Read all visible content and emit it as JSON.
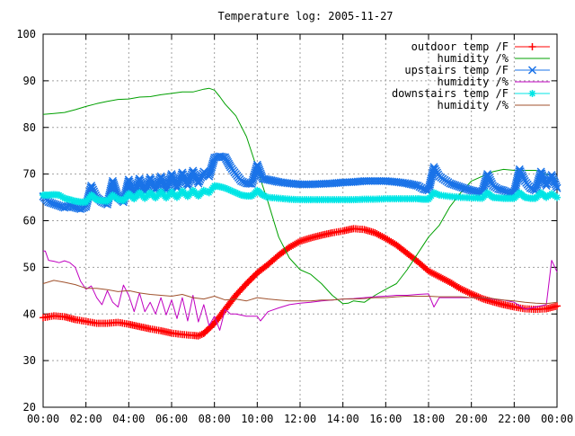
{
  "chart_data": {
    "type": "line",
    "title": "Temperature log: 2005-11-27",
    "xlabel": "",
    "ylabel": "",
    "xlim": [
      0,
      24
    ],
    "ylim": [
      20,
      100
    ],
    "grid": true,
    "legend_position": "top-right",
    "x_tick_labels": [
      "00:00",
      "02:00",
      "04:00",
      "06:00",
      "08:00",
      "10:00",
      "12:00",
      "14:00",
      "16:00",
      "18:00",
      "20:00",
      "22:00",
      "00:00"
    ],
    "y_tick_labels": [
      "20",
      "30",
      "40",
      "50",
      "60",
      "70",
      "80",
      "90",
      "100"
    ],
    "series": [
      {
        "name": "outdoor temp /F",
        "color": "#ff0000",
        "marker": "plus",
        "x": [
          0,
          0.5,
          1,
          1.5,
          2,
          2.5,
          3,
          3.5,
          4,
          4.5,
          5,
          5.5,
          6,
          6.5,
          7,
          7.25,
          7.5,
          8,
          8.5,
          9,
          9.5,
          10,
          10.5,
          11,
          11.5,
          12,
          12.5,
          13,
          13.5,
          14,
          14.5,
          15,
          15.5,
          16,
          16.5,
          17,
          17.5,
          18,
          18.5,
          19,
          19.5,
          20,
          20.5,
          21,
          21.5,
          22,
          22.5,
          23,
          23.5,
          24
        ],
        "y": [
          39.2,
          39.6,
          39.4,
          38.8,
          38.4,
          38.0,
          38.0,
          38.2,
          37.8,
          37.3,
          36.8,
          36.4,
          35.9,
          35.6,
          35.4,
          35.3,
          35.8,
          38.0,
          41.0,
          44.0,
          46.5,
          48.8,
          50.6,
          52.6,
          54.3,
          55.6,
          56.3,
          56.9,
          57.4,
          57.8,
          58.3,
          58.1,
          57.4,
          56.2,
          54.8,
          53.0,
          51.2,
          49.2,
          48.0,
          46.8,
          45.4,
          44.3,
          43.3,
          42.6,
          42.0,
          41.5,
          41.1,
          41.0,
          41.1,
          41.7
        ]
      },
      {
        "name": "humidity /%",
        "color": "#00a000",
        "marker": "none",
        "x": [
          0,
          0.5,
          1,
          1.5,
          2,
          2.5,
          3,
          3.5,
          4,
          4.5,
          5,
          5.5,
          6,
          6.5,
          7,
          7.5,
          7.75,
          8,
          8.25,
          8.5,
          9,
          9.5,
          10,
          10.5,
          11,
          11.5,
          12,
          12.5,
          13,
          13.5,
          14,
          14.25,
          14.5,
          15,
          15.5,
          16,
          16.5,
          17,
          17.5,
          18,
          18.5,
          19,
          19.5,
          20,
          20.5,
          21,
          21.5,
          22,
          22.5,
          23,
          23.5,
          24
        ],
        "y": [
          82.8,
          83.0,
          83.2,
          83.8,
          84.5,
          85.1,
          85.6,
          86.0,
          86.1,
          86.5,
          86.6,
          87.0,
          87.3,
          87.6,
          87.6,
          88.2,
          88.4,
          88.0,
          86.6,
          85.0,
          82.5,
          78.0,
          71.0,
          64.0,
          56.5,
          52.0,
          49.5,
          48.5,
          46.5,
          44.0,
          42.2,
          42.3,
          42.8,
          42.5,
          44.0,
          45.3,
          46.5,
          49.5,
          53.0,
          56.5,
          59.0,
          63.0,
          66.0,
          68.5,
          69.5,
          70.5,
          71.0,
          70.8,
          70.8,
          70.8,
          70.0,
          69.0
        ]
      },
      {
        "name": "upstairs temp /F",
        "color": "#1a73e8",
        "marker": "x",
        "x": [
          0,
          0.25,
          0.5,
          0.75,
          1,
          1.25,
          1.5,
          1.75,
          2,
          2.25,
          2.5,
          2.75,
          3,
          3.25,
          3.5,
          3.75,
          4,
          4.25,
          4.5,
          4.75,
          5,
          5.25,
          5.5,
          5.75,
          6,
          6.25,
          6.5,
          6.75,
          7,
          7.25,
          7.5,
          7.75,
          8,
          8.25,
          8.5,
          8.75,
          9,
          9.25,
          9.5,
          9.75,
          10,
          10.25,
          10.5,
          11,
          11.5,
          12,
          12.5,
          13,
          13.5,
          14,
          14.5,
          15,
          15.5,
          16,
          16.5,
          17,
          17.5,
          17.75,
          18,
          18.25,
          18.5,
          19,
          19.5,
          20,
          20.5,
          20.75,
          21,
          21.25,
          21.5,
          21.75,
          22,
          22.25,
          22.5,
          22.75,
          23,
          23.25,
          23.5,
          23.75,
          24
        ],
        "y": [
          65.2,
          64.0,
          63.6,
          63.2,
          62.8,
          63.2,
          62.8,
          62.5,
          63.0,
          67.5,
          65.0,
          64.0,
          63.5,
          68.5,
          65.0,
          64.0,
          68.8,
          65.5,
          69.0,
          66.0,
          69.2,
          66.5,
          69.5,
          66.5,
          70.0,
          67.0,
          70.3,
          67.5,
          70.7,
          68.0,
          70.5,
          69.5,
          73.5,
          73.8,
          73.6,
          71.5,
          70.0,
          68.5,
          68.0,
          67.9,
          72.0,
          69.0,
          68.8,
          68.3,
          68.0,
          67.8,
          67.8,
          67.9,
          68.0,
          68.2,
          68.3,
          68.5,
          68.5,
          68.5,
          68.3,
          68.0,
          67.5,
          66.8,
          66.5,
          71.5,
          69.5,
          68.0,
          67.2,
          66.5,
          66.0,
          70.0,
          67.5,
          66.8,
          66.5,
          66.0,
          66.0,
          71.0,
          68.5,
          67.0,
          66.5,
          70.5,
          67.5,
          69.8,
          67.0
        ]
      },
      {
        "name": "humidity /%",
        "color": "#c000c0",
        "marker": "none",
        "x": [
          0,
          0.1,
          0.25,
          0.5,
          0.75,
          1,
          1.25,
          1.5,
          1.75,
          2,
          2.25,
          2.5,
          2.75,
          3,
          3.25,
          3.5,
          3.75,
          4,
          4.25,
          4.5,
          4.75,
          5,
          5.25,
          5.5,
          5.75,
          6,
          6.25,
          6.5,
          6.75,
          7,
          7.25,
          7.5,
          7.75,
          8,
          8.25,
          8.5,
          8.75,
          9,
          9.5,
          10,
          10.15,
          10.5,
          11,
          11.5,
          12,
          12.5,
          13,
          13.5,
          14,
          14.5,
          15,
          15.5,
          16,
          16.5,
          17,
          17.5,
          18,
          18.25,
          18.5,
          19,
          19.5,
          20,
          20.5,
          21,
          21.5,
          22,
          22.5,
          23,
          23.5,
          23.75,
          24
        ],
        "y": [
          53.5,
          53.5,
          51.5,
          51.3,
          51.0,
          51.4,
          51.0,
          50.0,
          47.0,
          45.3,
          46.0,
          43.5,
          42.0,
          45.0,
          42.5,
          41.5,
          46.2,
          44.0,
          40.5,
          44.5,
          40.5,
          42.5,
          40.0,
          43.5,
          39.8,
          43.0,
          39.0,
          43.5,
          38.5,
          44.0,
          38.3,
          42.0,
          37.5,
          39.5,
          36.5,
          41.0,
          40.0,
          40.0,
          39.5,
          39.5,
          38.5,
          40.5,
          41.3,
          42.0,
          42.3,
          42.5,
          42.8,
          43.0,
          43.2,
          43.3,
          43.5,
          43.7,
          43.8,
          44.0,
          44.0,
          44.2,
          44.3,
          41.5,
          43.5,
          43.5,
          43.5,
          43.5,
          43.5,
          43.2,
          43.0,
          42.5,
          41.0,
          41.5,
          42.0,
          51.5,
          49.0
        ]
      },
      {
        "name": "downstairs temp /F",
        "color": "#00e5e5",
        "marker": "star",
        "x": [
          0,
          0.25,
          0.5,
          0.75,
          1,
          1.25,
          1.5,
          1.75,
          2,
          2.25,
          2.5,
          2.75,
          3,
          3.25,
          3.5,
          3.75,
          4,
          4.25,
          4.5,
          4.75,
          5,
          5.25,
          5.5,
          5.75,
          6,
          6.25,
          6.5,
          6.75,
          7,
          7.25,
          7.5,
          7.75,
          8,
          8.25,
          8.5,
          8.75,
          9,
          9.25,
          9.5,
          9.75,
          10,
          10.25,
          10.5,
          11,
          11.5,
          12,
          12.5,
          13,
          13.5,
          14,
          14.5,
          15,
          15.5,
          16,
          16.5,
          17,
          17.5,
          17.75,
          18,
          18.25,
          18.5,
          19,
          19.5,
          20,
          20.5,
          20.75,
          21,
          21.25,
          21.5,
          21.75,
          22,
          22.25,
          22.5,
          22.75,
          23,
          23.25,
          23.5,
          23.75,
          24
        ],
        "y": [
          65.5,
          65.5,
          65.6,
          65.5,
          64.8,
          64.5,
          64.2,
          64.0,
          64.0,
          65.5,
          64.5,
          64.3,
          64.2,
          65.5,
          64.6,
          64.3,
          65.8,
          64.7,
          66.0,
          64.8,
          66.0,
          64.9,
          66.2,
          64.9,
          66.2,
          65.0,
          66.4,
          65.2,
          66.5,
          65.3,
          66.5,
          66.0,
          67.5,
          67.3,
          67.0,
          66.5,
          66.0,
          65.5,
          65.3,
          65.3,
          66.5,
          65.5,
          65.0,
          64.8,
          64.6,
          64.5,
          64.5,
          64.5,
          64.5,
          64.5,
          64.5,
          64.6,
          64.6,
          64.7,
          64.7,
          64.7,
          64.7,
          64.6,
          64.6,
          66.0,
          65.5,
          65.2,
          65.0,
          64.9,
          64.8,
          66.0,
          65.0,
          64.9,
          64.8,
          64.8,
          64.8,
          66.0,
          65.0,
          64.8,
          64.8,
          66.0,
          65.0,
          65.8,
          65.0
        ]
      },
      {
        "name": "humidity /%",
        "color": "#a0522d",
        "marker": "none",
        "x": [
          0,
          0.5,
          1,
          1.5,
          2,
          2.5,
          3,
          3.5,
          4,
          4.5,
          5,
          5.5,
          6,
          6.5,
          7,
          7.5,
          8,
          8.5,
          9,
          9.5,
          10,
          10.5,
          11,
          11.5,
          12,
          12.5,
          13,
          13.5,
          14,
          14.5,
          15,
          15.5,
          16,
          16.5,
          17,
          17.5,
          18,
          18.5,
          19,
          19.5,
          20,
          20.5,
          21,
          21.5,
          22,
          22.5,
          23,
          23.5,
          24
        ],
        "y": [
          46.5,
          47.2,
          46.8,
          46.3,
          45.5,
          45.5,
          45.2,
          44.8,
          45.0,
          44.5,
          44.2,
          44.0,
          43.8,
          44.2,
          43.5,
          43.2,
          43.8,
          43.0,
          43.2,
          42.8,
          43.5,
          43.2,
          43.0,
          42.8,
          42.8,
          42.8,
          43.0,
          43.0,
          43.2,
          43.2,
          43.3,
          43.5,
          43.5,
          43.7,
          43.8,
          43.8,
          43.8,
          43.7,
          43.7,
          43.7,
          43.5,
          43.5,
          43.3,
          43.0,
          42.8,
          42.5,
          42.3,
          42.2,
          42.5
        ]
      }
    ]
  }
}
